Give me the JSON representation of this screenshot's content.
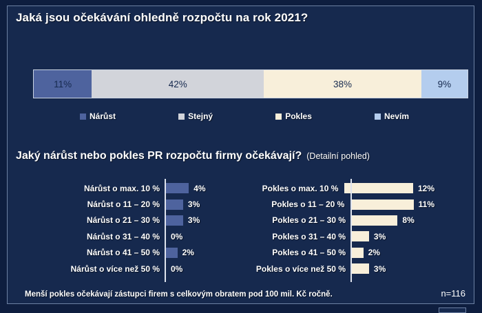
{
  "section1": {
    "title": "Jaká jsou očekávání ohledně rozpočtu na rok 2021?"
  },
  "section2": {
    "title": "Jaký nárůst nebo pokles PR rozpočtu firmy očekávají?",
    "subtitle": "(Detailní pohled)"
  },
  "footer": {
    "note": "Menší pokles očekávají zástupci firem s celkovým obratem pod 100 mil. Kč ročně.",
    "sample_size": "n=116"
  },
  "colors": {
    "page_background": "#0e1e3f",
    "panel_background": "#16294e",
    "frame_border": "#6d81a3",
    "increase": "#4e639e",
    "same": "#d2d4da",
    "decrease": "#f8efda",
    "dont_know": "#b4cdee",
    "axis": "#dfe4ee",
    "text": "#ffffff",
    "segment_label_text": "#16294e"
  },
  "chart_data": [
    {
      "type": "bar",
      "subtype": "stacked-horizontal-100",
      "title": "Jaká jsou očekávání ohledně rozpočtu na rok 2021?",
      "categories": [
        "Nárůst",
        "Stejný",
        "Pokles",
        "Nevím"
      ],
      "values": [
        11,
        42,
        38,
        9
      ],
      "unit": "%",
      "colors": [
        "#4e639e",
        "#d2d4da",
        "#f8efda",
        "#b4cdee"
      ],
      "legend_position": "bottom"
    },
    {
      "type": "bar",
      "subtype": "horizontal",
      "series_name": "Nárůst (detailní pohled)",
      "categories": [
        "Nárůst o max. 10 %",
        "Nárůst o 11 – 20 %",
        "Nárůst o 21 – 30 %",
        "Nárůst o 31 – 40 %",
        "Nárůst o 41 – 50 %",
        "Nárůst o více než 50 %"
      ],
      "values": [
        4,
        3,
        3,
        0,
        2,
        0
      ],
      "unit": "%",
      "bar_color": "#4e639e",
      "xlim": [
        0,
        13
      ],
      "grid": false
    },
    {
      "type": "bar",
      "subtype": "horizontal",
      "series_name": "Pokles (detailní pohled)",
      "categories": [
        "Pokles o max. 10 %",
        "Pokles o 11 – 20 %",
        "Pokles o 21 – 30 %",
        "Pokles o 31 – 40 %",
        "Pokles o 41 – 50 %",
        "Pokles o více než 50 %"
      ],
      "values": [
        12,
        11,
        8,
        3,
        2,
        3
      ],
      "unit": "%",
      "bar_color": "#f8efda",
      "xlim": [
        0,
        13
      ],
      "grid": false
    }
  ]
}
